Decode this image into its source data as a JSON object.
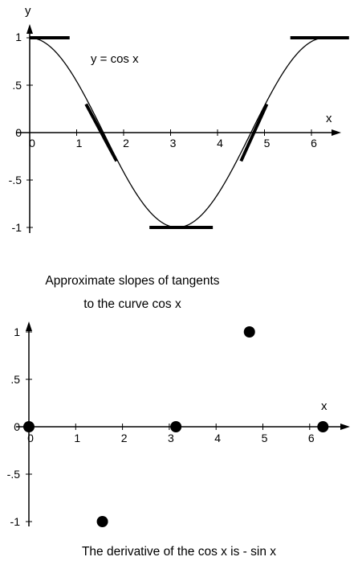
{
  "chart_data": [
    {
      "type": "line",
      "equation_label": "y = cos x",
      "xlabel": "x",
      "ylabel": "y",
      "xlim": [
        0,
        6.6
      ],
      "ylim": [
        -1,
        1.1
      ],
      "x_ticks": [
        "0",
        "1",
        "2",
        "3",
        "4",
        "5",
        "6"
      ],
      "y_ticks": [
        ".5",
        "0",
        "-.5",
        "-1"
      ],
      "y_top_tick": "1",
      "series": [
        {
          "function": "cos",
          "x_range": [
            0,
            6.2832
          ]
        }
      ],
      "tangent_segments": [
        {
          "x1": 0,
          "y1": 1.0,
          "x2": 0.85,
          "y2": 1.0
        },
        {
          "x1": 1.2,
          "y1": 0.3,
          "x2": 1.85,
          "y2": -0.3
        },
        {
          "x1": 2.55,
          "y1": -1.0,
          "x2": 3.9,
          "y2": -1.0
        },
        {
          "x1": 4.5,
          "y1": -0.3,
          "x2": 5.05,
          "y2": 0.3
        },
        {
          "x1": 5.55,
          "y1": 1.0,
          "x2": 6.8,
          "y2": 1.0
        }
      ]
    },
    {
      "type": "scatter",
      "xlabel": "x",
      "xlim": [
        0,
        6.6
      ],
      "ylim": [
        -1,
        1.1
      ],
      "x_ticks": [
        "0",
        "1",
        "2",
        "3",
        "4",
        "5",
        "6"
      ],
      "y_ticks": [
        "1",
        ".5",
        "0",
        "-.5",
        "-1"
      ],
      "points": [
        {
          "x": 0,
          "y": 0
        },
        {
          "x": 1.5708,
          "y": -1
        },
        {
          "x": 3.1416,
          "y": 0
        },
        {
          "x": 4.7124,
          "y": 1
        },
        {
          "x": 6.2832,
          "y": 0
        }
      ]
    }
  ],
  "captions": {
    "middle_line1": "Approximate slopes of tangents",
    "middle_line2": "to the curve  cos x",
    "bottom": "The derivative of the cos x is  - sin x"
  }
}
